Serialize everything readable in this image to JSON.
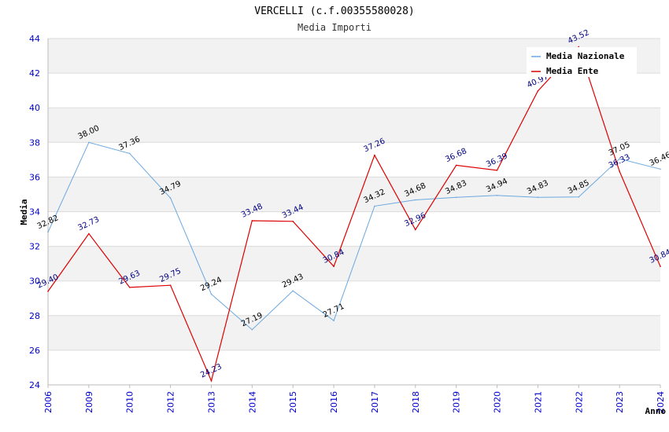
{
  "chart_data": {
    "type": "line",
    "title": "VERCELLI (c.f.00355580028)",
    "subtitle": "Media Importi",
    "xlabel": "Anno",
    "ylabel": "Media",
    "ylim": [
      24,
      44
    ],
    "yticks": [
      "24",
      "26",
      "28",
      "30",
      "32",
      "34",
      "36",
      "38",
      "40",
      "42",
      "44"
    ],
    "categories": [
      "2006",
      "2009",
      "2010",
      "2012",
      "2013",
      "2014",
      "2015",
      "2016",
      "2017",
      "2018",
      "2019",
      "2020",
      "2021",
      "2022",
      "2023",
      "2024"
    ],
    "series": [
      {
        "name": "Media Nazionale",
        "color": "#6aa8e0",
        "label_color": "#000000",
        "values": [
          32.82,
          38.0,
          37.36,
          34.79,
          29.24,
          27.19,
          29.43,
          27.71,
          34.32,
          34.68,
          34.83,
          34.94,
          34.83,
          34.85,
          37.05,
          36.46
        ],
        "labels": [
          "32.82",
          "38.00",
          "37.36",
          "34.79",
          "29.24",
          "27.19",
          "29.43",
          "27.71",
          "34.32",
          "34.68",
          "34.83",
          "34.94",
          "34.83",
          "34.85",
          "37.05",
          "36.46"
        ]
      },
      {
        "name": "Media Ente",
        "color": "#dd0000",
        "label_color": "#000080",
        "values": [
          29.4,
          32.73,
          29.63,
          29.75,
          24.23,
          33.48,
          33.44,
          30.84,
          37.26,
          32.96,
          36.68,
          36.39,
          40.97,
          43.52,
          36.33,
          30.84
        ],
        "labels": [
          "29.40",
          "32.73",
          "29.63",
          "29.75",
          "24.23",
          "33.48",
          "33.44",
          "30.84",
          "37.26",
          "32.96",
          "36.68",
          "36.39",
          "40.97",
          "43.52",
          "36.33",
          "30.84"
        ]
      }
    ],
    "legend_position": "top-right",
    "grid": true
  }
}
